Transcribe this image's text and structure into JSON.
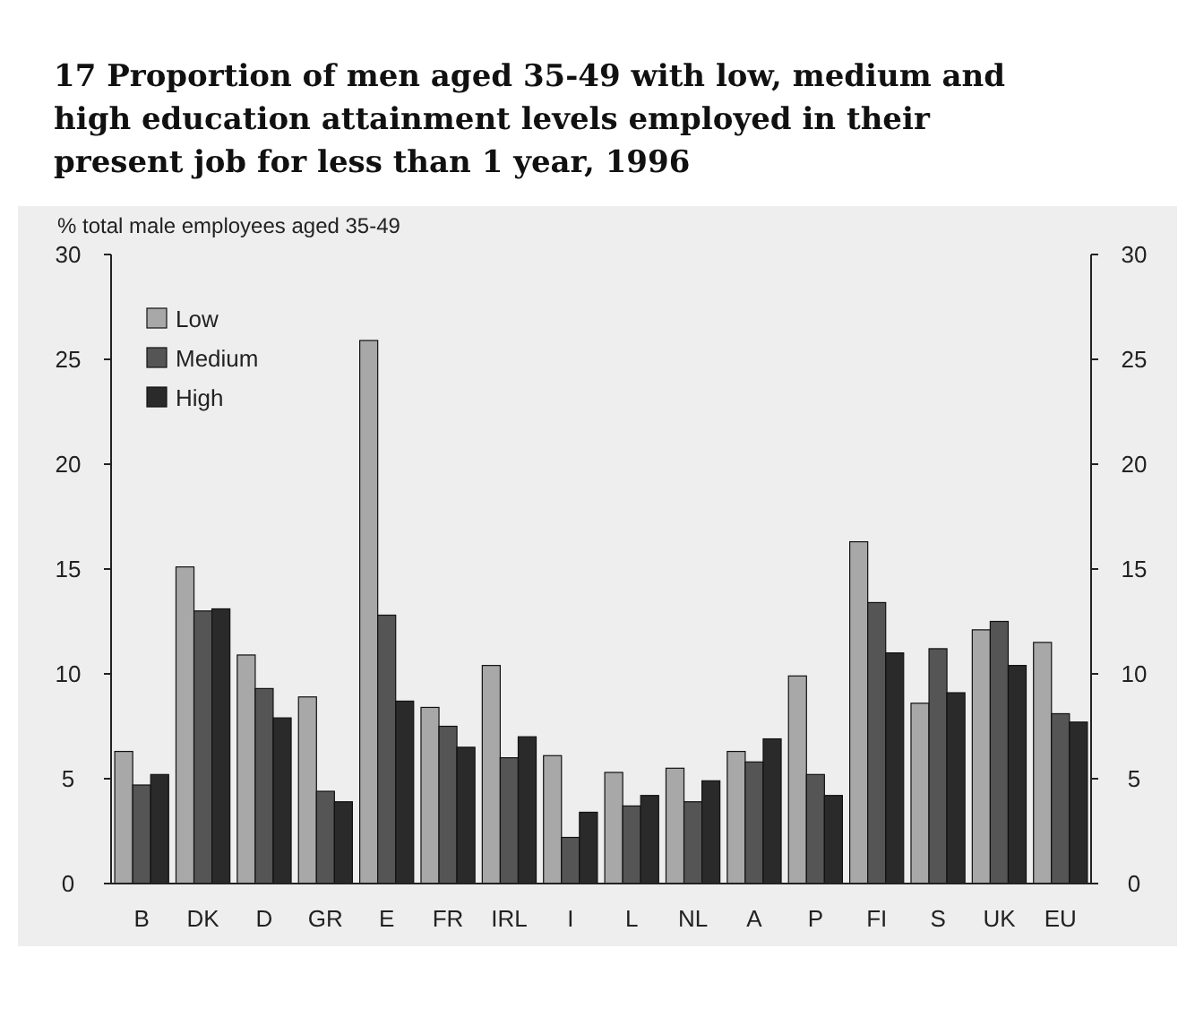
{
  "chart_data": {
    "type": "bar",
    "title": "17 Proportion of men aged 35-49 with low, medium and high education attainment levels employed in their present job for less than 1 year, 1996",
    "ylabel": "% total male employees aged 35-49",
    "categories": [
      "B",
      "DK",
      "D",
      "GR",
      "E",
      "FR",
      "IRL",
      "I",
      "L",
      "NL",
      "A",
      "P",
      "FI",
      "S",
      "UK",
      "EU"
    ],
    "series": [
      {
        "name": "Low",
        "color": "#a8a8a8",
        "values": [
          6.3,
          15.1,
          10.9,
          8.9,
          25.9,
          8.4,
          10.4,
          6.1,
          5.3,
          5.5,
          6.3,
          9.9,
          16.3,
          8.6,
          12.1,
          11.5
        ]
      },
      {
        "name": "Medium",
        "color": "#555555",
        "values": [
          4.7,
          13.0,
          9.3,
          4.4,
          12.8,
          7.5,
          6.0,
          2.2,
          3.7,
          3.9,
          5.8,
          5.2,
          13.4,
          11.2,
          12.5,
          8.1
        ]
      },
      {
        "name": "High",
        "color": "#2a2a2a",
        "values": [
          5.2,
          13.1,
          7.9,
          3.9,
          8.7,
          6.5,
          7.0,
          3.4,
          4.2,
          4.9,
          6.9,
          4.2,
          11.0,
          9.1,
          10.4,
          7.7
        ]
      }
    ],
    "ylim": [
      0,
      30
    ],
    "yticks": [
      0,
      5,
      10,
      15,
      20,
      25,
      30
    ],
    "y2lim": [
      0,
      30
    ],
    "y2ticks": [
      0,
      5,
      10,
      15,
      20,
      25,
      30
    ],
    "legend": "top left"
  }
}
